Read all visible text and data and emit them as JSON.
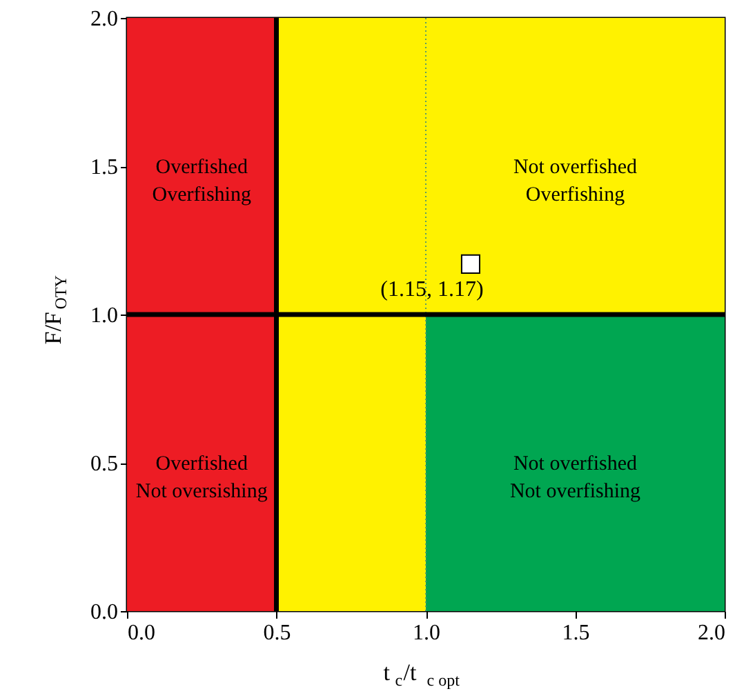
{
  "chart_data": {
    "type": "scatter",
    "xlabel": "t$_{c}$/t$_{c opt}$",
    "ylabel": "F/F$_{OTY}$",
    "xlim": [
      0,
      2
    ],
    "ylim": [
      0,
      2
    ],
    "xticks": [
      {
        "value": 0,
        "label": "0.0"
      },
      {
        "value": 0.5,
        "label": "0.5"
      },
      {
        "value": 1,
        "label": "1.0"
      },
      {
        "value": 1.5,
        "label": "1.5"
      },
      {
        "value": 2,
        "label": "2.0"
      }
    ],
    "yticks": [
      {
        "value": 0,
        "label": "0.0"
      },
      {
        "value": 0.5,
        "label": "0.5"
      },
      {
        "value": 1,
        "label": "1.0"
      },
      {
        "value": 1.5,
        "label": "1.5"
      },
      {
        "value": 2,
        "label": "2.0"
      }
    ],
    "series": [
      {
        "x": [
          1.15
        ],
        "values": [
          1.17
        ],
        "color": "#ffffff"
      }
    ],
    "marker": "square",
    "grid": false,
    "bands": [
      {
        "axis": "x",
        "from": 1,
        "to": 2,
        "color": "#00a651"
      },
      {
        "axis": "x",
        "from": 0.5,
        "to": 1,
        "color": "#fff200"
      },
      {
        "axis": "y",
        "from": 1,
        "to": 2,
        "color": "#fff200"
      },
      {
        "axis": "x",
        "from": 0,
        "to": 0.5,
        "color": "#ed1c24"
      }
    ],
    "ref_lines": [
      {
        "axis": "x",
        "value": 1,
        "color": "#5a9a6a",
        "line_style": "dotted"
      },
      {
        "axis": "x",
        "value": 0.5,
        "color": "#000000",
        "line_style": "solid"
      },
      {
        "axis": "y",
        "value": 1,
        "color": "#000000",
        "line_style": "solid"
      }
    ],
    "annotations": [
      "Overfished\nOverfishing",
      "Not overfished\nOverfishing",
      "Overfished\nNot oversishing",
      "Not overfished\nNot overfishing",
      {
        "text": "(1.15, 1.17)",
        "x": 1.15,
        "y": 1.17
      }
    ]
  }
}
